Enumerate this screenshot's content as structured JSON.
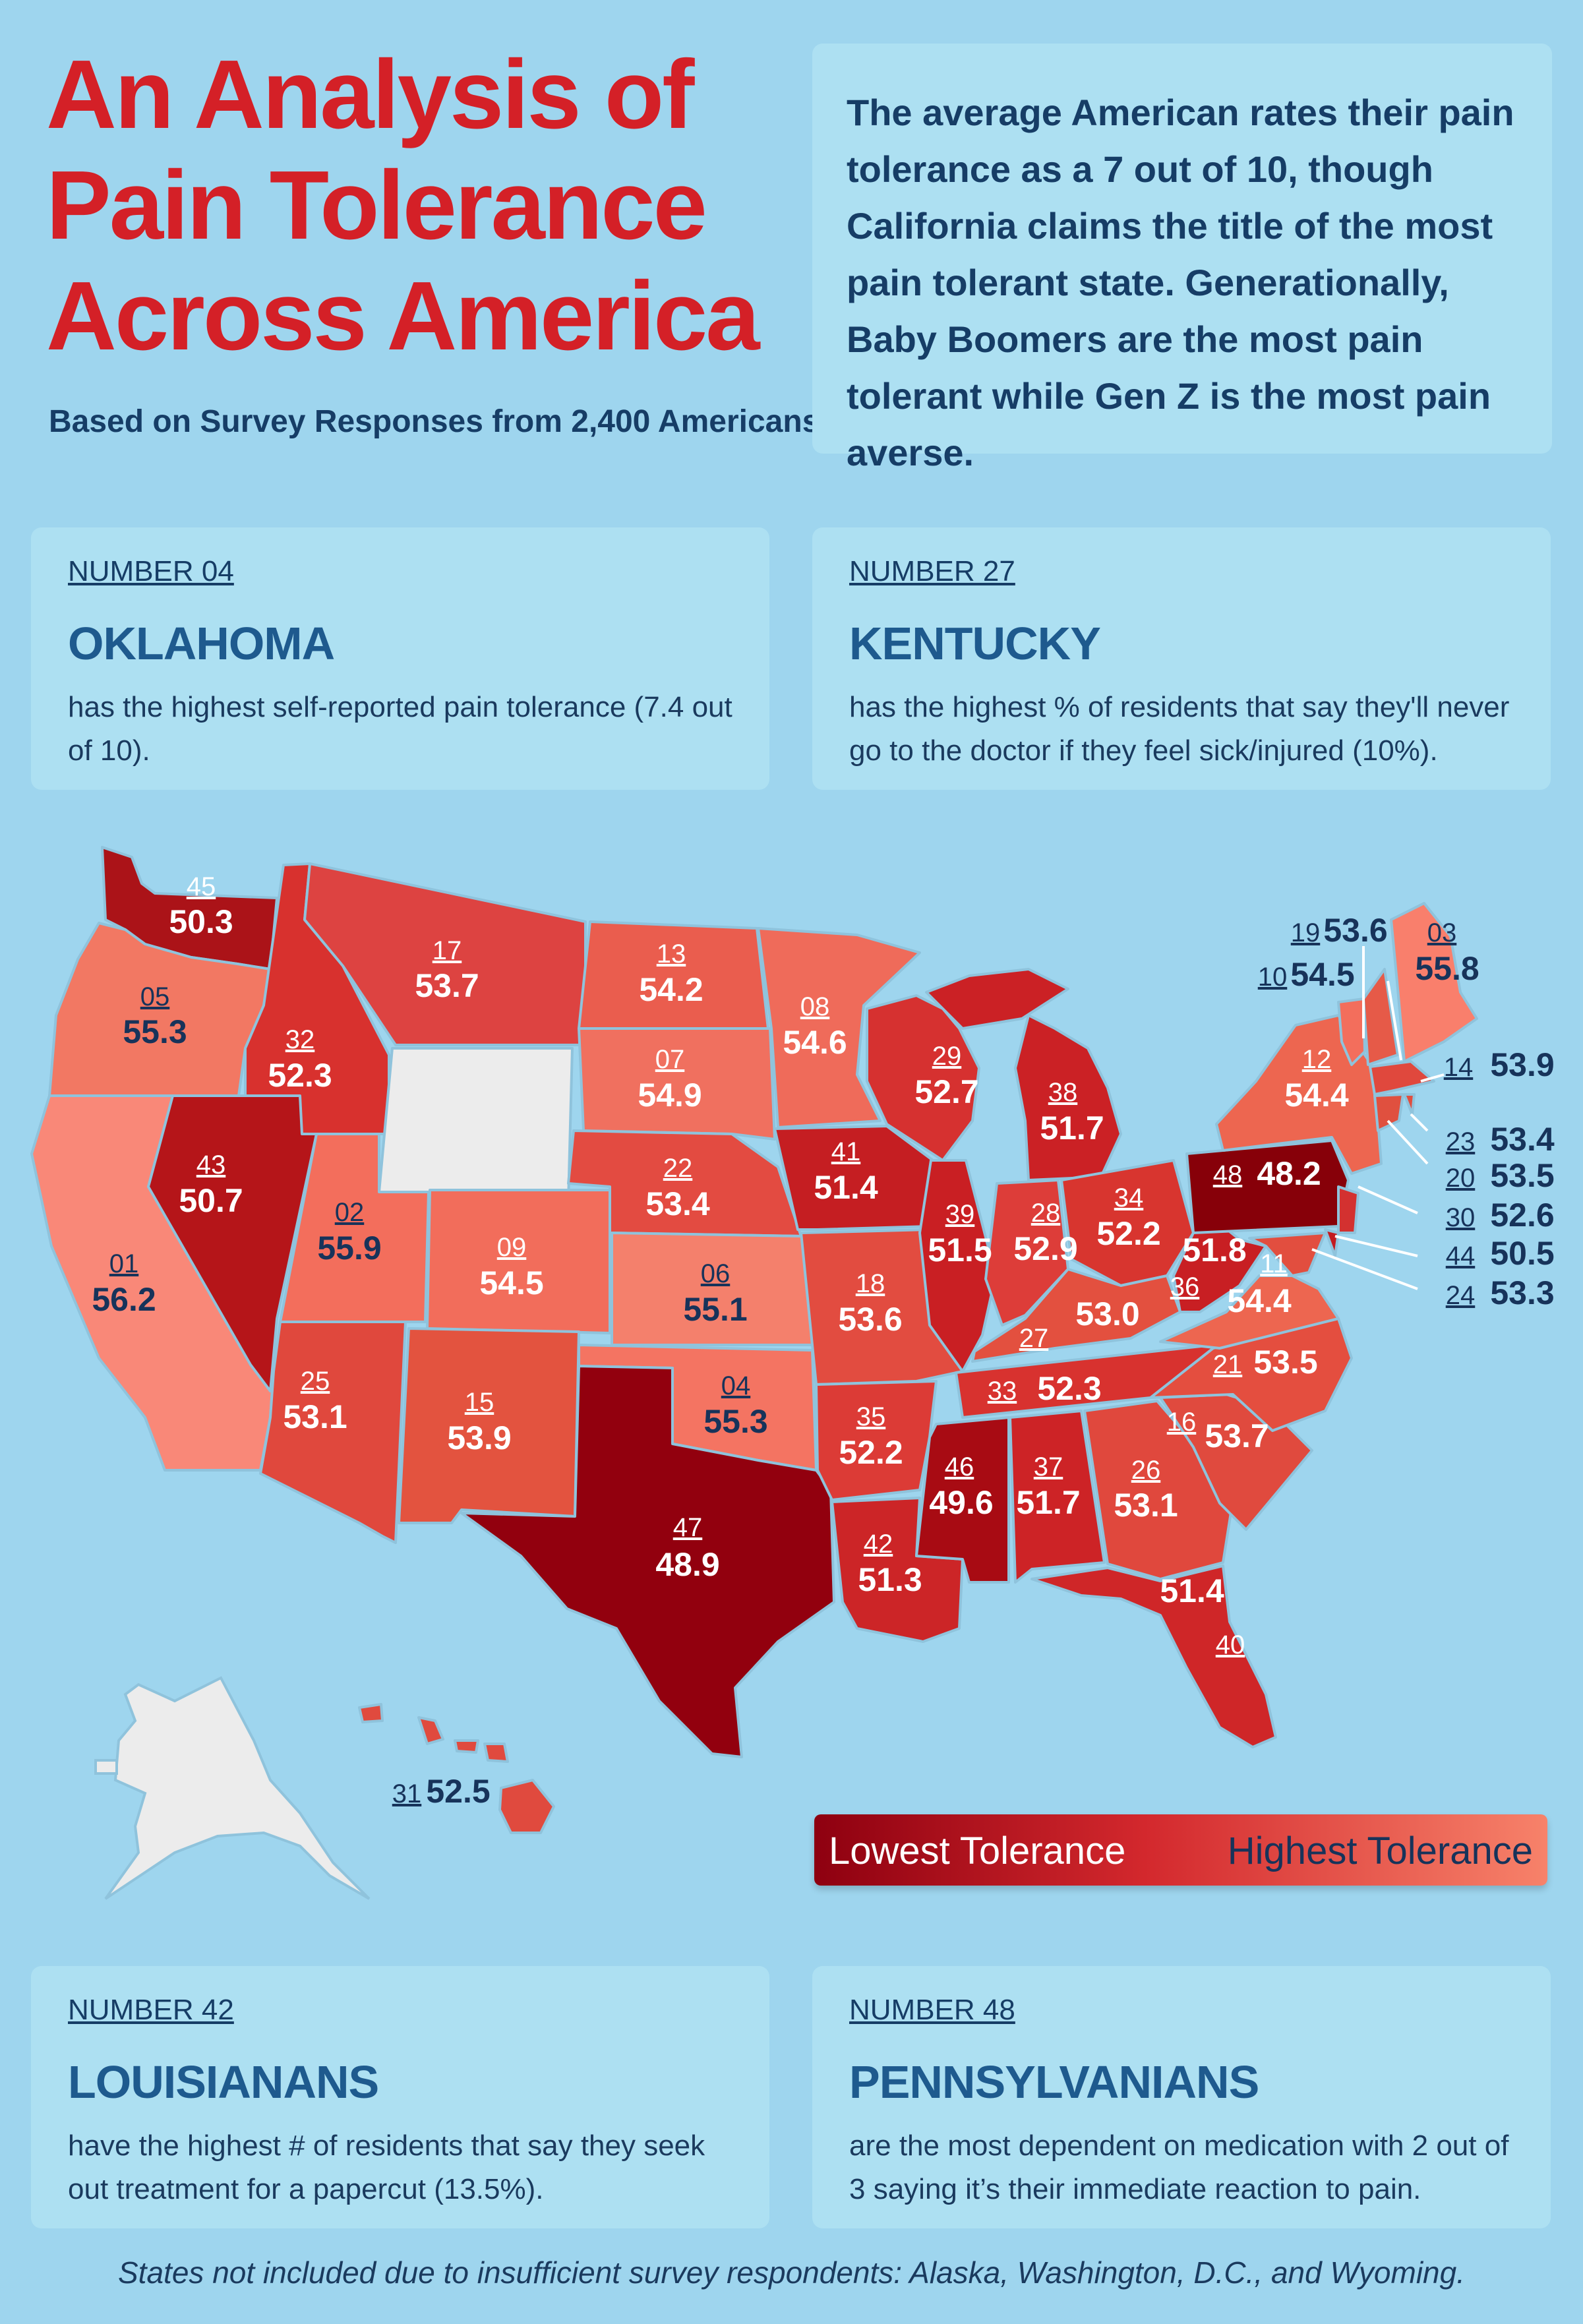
{
  "header": {
    "title_line1": "An Analysis of",
    "title_line2": "Pain Tolerance",
    "title_line3": "Across America",
    "subtitle": "Based on Survey Responses from 2,400 Americans"
  },
  "intro": {
    "text": "The average American rates their pain tolerance as a 7 out of 10, though California claims the title of the most pain tolerant state. Generationally, Baby Boomers are the most pain tolerant while Gen Z is the most pain averse."
  },
  "facts": [
    {
      "number": "NUMBER 04",
      "heading": "OKLAHOMA",
      "body": "has the highest self-reported pain tolerance (7.4 out of 10)."
    },
    {
      "number": "NUMBER 27",
      "heading": "KENTUCKY",
      "body": "has the highest % of residents that say they'll never go to the doctor if they feel sick/injured (10%)."
    },
    {
      "number": "NUMBER 42",
      "heading": "LOUISIANANS",
      "body": "have the highest # of residents that say they seek out treatment for a papercut (13.5%)."
    },
    {
      "number": "NUMBER 48",
      "heading": "PENNSYLVANIANS",
      "body": "are the most dependent on medication with 2 out of 3 saying it’s their immediate reaction to pain."
    }
  ],
  "legend": {
    "low": "Lowest Tolerance",
    "high": "Highest Tolerance"
  },
  "colors": {
    "lowest": "#8e0010",
    "highest": "#f7826a",
    "excluded": "#ececec",
    "title": "#d42027"
  },
  "states": [
    {
      "name": "Washington",
      "rank": "45",
      "score": "50.3"
    },
    {
      "name": "Oregon",
      "rank": "05",
      "score": "55.3"
    },
    {
      "name": "California",
      "rank": "01",
      "score": "56.2"
    },
    {
      "name": "Idaho",
      "rank": "32",
      "score": "52.3"
    },
    {
      "name": "Nevada",
      "rank": "43",
      "score": "50.7"
    },
    {
      "name": "Montana",
      "rank": "17",
      "score": "53.7"
    },
    {
      "name": "Utah",
      "rank": "02",
      "score": "55.9"
    },
    {
      "name": "Arizona",
      "rank": "25",
      "score": "53.1"
    },
    {
      "name": "Colorado",
      "rank": "09",
      "score": "54.5"
    },
    {
      "name": "New Mexico",
      "rank": "15",
      "score": "53.9"
    },
    {
      "name": "North Dakota",
      "rank": "13",
      "score": "54.2"
    },
    {
      "name": "South Dakota",
      "rank": "07",
      "score": "54.9"
    },
    {
      "name": "Nebraska",
      "rank": "22",
      "score": "53.4"
    },
    {
      "name": "Kansas",
      "rank": "06",
      "score": "55.1"
    },
    {
      "name": "Oklahoma",
      "rank": "04",
      "score": "55.3"
    },
    {
      "name": "Texas",
      "rank": "47",
      "score": "48.9"
    },
    {
      "name": "Minnesota",
      "rank": "08",
      "score": "54.6"
    },
    {
      "name": "Iowa",
      "rank": "41",
      "score": "51.4"
    },
    {
      "name": "Missouri",
      "rank": "18",
      "score": "53.6"
    },
    {
      "name": "Arkansas",
      "rank": "35",
      "score": "52.2"
    },
    {
      "name": "Louisiana",
      "rank": "42",
      "score": "51.3"
    },
    {
      "name": "Wisconsin",
      "rank": "29",
      "score": "52.7"
    },
    {
      "name": "Illinois",
      "rank": "39",
      "score": "51.5"
    },
    {
      "name": "Michigan",
      "rank": "38",
      "score": "51.7"
    },
    {
      "name": "Indiana",
      "rank": "28",
      "score": "52.9"
    },
    {
      "name": "Ohio",
      "rank": "34",
      "score": "52.2"
    },
    {
      "name": "Kentucky",
      "rank": "27",
      "score": "53.0"
    },
    {
      "name": "Tennessee",
      "rank": "33",
      "score": "52.3"
    },
    {
      "name": "Mississippi",
      "rank": "46",
      "score": "49.6"
    },
    {
      "name": "Alabama",
      "rank": "37",
      "score": "51.7"
    },
    {
      "name": "Georgia",
      "rank": "26",
      "score": "53.1"
    },
    {
      "name": "Florida",
      "rank": "40",
      "score": "51.4"
    },
    {
      "name": "South Carolina",
      "rank": "16",
      "score": "53.7"
    },
    {
      "name": "North Carolina",
      "rank": "21",
      "score": "53.5"
    },
    {
      "name": "Virginia",
      "rank": "11",
      "score": "54.4"
    },
    {
      "name": "West Virginia",
      "rank": "36",
      "score": "51.8"
    },
    {
      "name": "Pennsylvania",
      "rank": "48",
      "score": "48.2"
    },
    {
      "name": "New York",
      "rank": "12",
      "score": "54.4"
    },
    {
      "name": "Maine",
      "rank": "03",
      "score": "55.8"
    },
    {
      "name": "Vermont",
      "rank": "10",
      "score": "54.5"
    },
    {
      "name": "New Hampshire",
      "rank": "19",
      "score": "53.6"
    },
    {
      "name": "Massachusetts",
      "rank": "14",
      "score": "53.9"
    },
    {
      "name": "Rhode Island",
      "rank": "23",
      "score": "53.4"
    },
    {
      "name": "Connecticut",
      "rank": "20",
      "score": "53.5"
    },
    {
      "name": "New Jersey",
      "rank": "30",
      "score": "52.6"
    },
    {
      "name": "Delaware",
      "rank": "44",
      "score": "50.5"
    },
    {
      "name": "Maryland",
      "rank": "24",
      "score": "53.3"
    },
    {
      "name": "Hawaii",
      "rank": "31",
      "score": "52.5"
    }
  ],
  "footnote": "States not included due to insufficient survey respondents: Alaska, Washington, D.C., and Wyoming."
}
